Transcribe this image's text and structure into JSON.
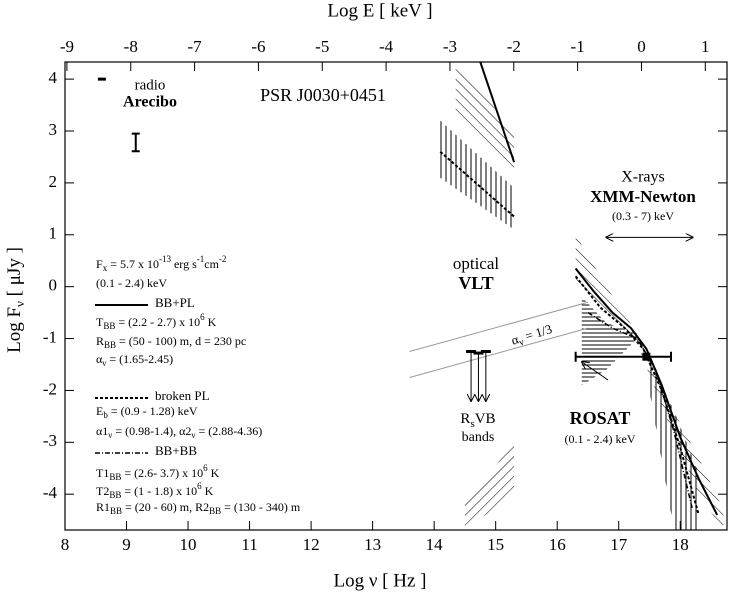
{
  "chart_data": {
    "type": "line",
    "title": "PSR J0030+0451",
    "xlabel": "Log ν [ Hz ]",
    "x2label": "Log E [ keV ]",
    "ylabel": [
      {
        "text": "Log F"
      },
      {
        "text": "ν",
        "shift": "sub"
      },
      {
        "text": " [ μJy ]"
      }
    ],
    "xlim": [
      8,
      18.76
    ],
    "xticks": [
      8,
      9,
      10,
      11,
      12,
      13,
      14,
      15,
      16,
      17,
      18
    ],
    "x2lim": [
      -9.03,
      1.34
    ],
    "x2ticks": [
      -9,
      -8,
      -7,
      -6,
      -5,
      -4,
      -3,
      -2,
      -1,
      0,
      1
    ],
    "ylim": [
      -4.69,
      4.33
    ],
    "yticks": [
      -4,
      -3,
      -2,
      -1,
      0,
      1,
      2,
      3,
      4
    ],
    "series": [
      {
        "name": "BB+PL",
        "style": "solid",
        "segments": [
          {
            "x": [
              14.75,
              15.3
            ],
            "values": [
              4.33,
              2.4
            ]
          },
          {
            "x": [
              16.3,
              16.6,
              16.9,
              17.2,
              17.45,
              17.7,
              18.0,
              18.3,
              18.6
            ],
            "values": [
              0.35,
              -0.1,
              -0.5,
              -0.8,
              -1.2,
              -1.9,
              -2.9,
              -3.7,
              -4.4
            ]
          }
        ]
      },
      {
        "name": "broken PL",
        "style": "dashed",
        "segments": [
          {
            "x": [
              14.1,
              15.3
            ],
            "values": [
              2.6,
              1.35
            ]
          },
          {
            "x": [
              16.3,
              16.7,
              17.1,
              17.4,
              17.7,
              18.0,
              18.3
            ],
            "values": [
              0.2,
              -0.4,
              -0.8,
              -1.2,
              -2.0,
              -3.1,
              -4.4
            ]
          }
        ]
      },
      {
        "name": "BB+BB",
        "style": "dashdot",
        "segments": [
          {
            "x": [
              16.5,
              16.9,
              17.3,
              17.6,
              17.9,
              18.2
            ],
            "values": [
              -0.5,
              -0.8,
              -1.0,
              -1.6,
              -2.8,
              -4.3
            ]
          }
        ]
      }
    ],
    "regions": [
      {
        "hatch": "diag-down",
        "x": [
          14.35,
          15.3
        ],
        "upper": [
          4.33,
          3.0
        ],
        "lower": [
          3.3,
          2.2
        ]
      },
      {
        "hatch": "vertical",
        "x": [
          14.1,
          15.3
        ],
        "upper": [
          3.2,
          1.9
        ],
        "lower": [
          2.1,
          1.1
        ]
      },
      {
        "hatch": "diag-up",
        "x": [
          14.5,
          15.3
        ],
        "upper": [
          -4.2,
          -3.0
        ],
        "lower": [
          -4.69,
          -4.0
        ]
      },
      {
        "hatch": "diag-down",
        "x": [
          16.3,
          16.8,
          17.3,
          17.8,
          18.3,
          18.7
        ],
        "upper": [
          1.0,
          0.0,
          -0.9,
          -2.2,
          -3.3,
          -4.3
        ],
        "lower": [
          0.1,
          -0.6,
          -1.1,
          -2.6,
          -4.0,
          -4.69
        ]
      },
      {
        "hatch": "horizontal",
        "x": [
          16.4,
          16.8,
          17.3
        ],
        "upper": [
          -0.2,
          -0.7,
          -0.9
        ],
        "lower": [
          -1.9,
          -1.6,
          -1.0
        ]
      },
      {
        "hatch": "vertical",
        "x": [
          17.5,
          17.9,
          18.3
        ],
        "upper": [
          -1.4,
          -2.4,
          -3.6
        ],
        "lower": [
          -2.0,
          -4.69,
          -4.69
        ]
      }
    ],
    "guides": [
      {
        "x": [
          13.6,
          16.5
        ],
        "values": [
          -1.25,
          -0.3
        ]
      },
      {
        "x": [
          13.6,
          16.5
        ],
        "values": [
          -1.75,
          -0.8
        ]
      }
    ],
    "radio_limit": {
      "x": 8.6,
      "value": 4.0
    },
    "radio_point": {
      "x": 9.15,
      "value": 2.78,
      "error": 0.17
    },
    "optical_limits": {
      "x": [
        14.6,
        14.72,
        14.84
      ],
      "values": [
        -1.25,
        -1.28,
        -1.25
      ],
      "arrow_to": -2.2
    },
    "rosat": {
      "x": 17.45,
      "value": -1.35,
      "xrange": [
        16.3,
        17.85
      ]
    },
    "xmm_band": {
      "xrange": [
        16.8,
        18.2
      ],
      "value": 0.95
    },
    "annotations": {
      "radio": "radio",
      "arecibo": "Arecibo",
      "optical": "optical",
      "vlt": "VLT",
      "xrays": "X-rays",
      "xmm": "XMM-Newton",
      "xmm_band": "(0.3 - 7) keV",
      "rosat": "ROSAT",
      "rosat_band": "(0.1 - 2.4) keV",
      "bands": [
        {
          "text": "R"
        },
        {
          "text": "s",
          "shift": "sub"
        },
        {
          "text": "VB"
        }
      ],
      "bands2": "bands",
      "alpha": [
        {
          "text": "α"
        },
        {
          "text": "ν",
          "shift": "sub"
        },
        {
          "text": " = 1/3"
        }
      ]
    },
    "legend_text": [
      [
        {
          "text": "F"
        },
        {
          "text": "x",
          "shift": "sub"
        },
        {
          "text": " = 5.7 x 10"
        },
        {
          "text": "-13",
          "shift": "sup"
        },
        {
          "text": " erg s"
        },
        {
          "text": "-1",
          "shift": "sup"
        },
        {
          "text": "cm"
        },
        {
          "text": "-2",
          "shift": "sup"
        }
      ],
      [
        {
          "text": "(0.1 - 2.4) keV"
        }
      ],
      [
        {
          "text": "T"
        },
        {
          "text": "BB",
          "shift": "sub"
        },
        {
          "text": " = (2.2 - 2.7) x 10"
        },
        {
          "text": "6",
          "shift": "sup"
        },
        {
          "text": " K"
        }
      ],
      [
        {
          "text": "R"
        },
        {
          "text": "BB",
          "shift": "sub"
        },
        {
          "text": " = (50 - 100) m, d = 230 pc"
        }
      ],
      [
        {
          "text": "α"
        },
        {
          "text": "ν",
          "shift": "sub"
        },
        {
          "text": " = (1.65-2.45)"
        }
      ],
      [
        {
          "text": "E"
        },
        {
          "text": "b",
          "shift": "sub"
        },
        {
          "text": " = (0.9 - 1.28) keV"
        }
      ],
      [
        {
          "text": "α1"
        },
        {
          "text": "ν",
          "shift": "sub"
        },
        {
          "text": " = (0.98-1.4),  α2"
        },
        {
          "text": "ν",
          "shift": "sub"
        },
        {
          "text": " = (2.88-4.36)"
        }
      ],
      [
        {
          "text": "T1"
        },
        {
          "text": "BB",
          "shift": "sub"
        },
        {
          "text": " = (2.6- 3.7) x 10"
        },
        {
          "text": "6",
          "shift": "sup"
        },
        {
          "text": " K"
        }
      ],
      [
        {
          "text": "T2"
        },
        {
          "text": "BB",
          "shift": "sub"
        },
        {
          "text": " = (1 - 1.8) x 10"
        },
        {
          "text": "6",
          "shift": "sup"
        },
        {
          "text": " K"
        }
      ],
      [
        {
          "text": "R1"
        },
        {
          "text": "BB",
          "shift": "sub"
        },
        {
          "text": " = (20 - 60) m,  R2"
        },
        {
          "text": "BB",
          "shift": "sub"
        },
        {
          "text": " = (130 - 340) m"
        }
      ]
    ]
  }
}
